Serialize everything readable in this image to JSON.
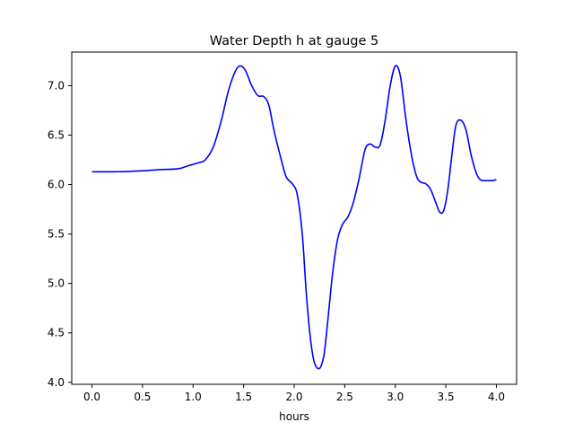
{
  "chart_data": {
    "type": "line",
    "title": "Water Depth h at gauge 5",
    "xlabel": "hours",
    "ylabel": "",
    "xlim": [
      -0.2,
      4.2
    ],
    "ylim": [
      3.98,
      7.34
    ],
    "xticks": [
      0.0,
      0.5,
      1.0,
      1.5,
      2.0,
      2.5,
      3.0,
      3.5,
      4.0
    ],
    "xtick_labels": [
      "0.0",
      "0.5",
      "1.0",
      "1.5",
      "2.0",
      "2.5",
      "3.0",
      "3.5",
      "4.0"
    ],
    "yticks": [
      4.0,
      4.5,
      5.0,
      5.5,
      6.0,
      6.5,
      7.0
    ],
    "ytick_labels": [
      "4.0",
      "4.5",
      "5.0",
      "5.5",
      "6.0",
      "6.5",
      "7.0"
    ],
    "grid": false,
    "series": [
      {
        "color": "#0000ff",
        "x": [
          0.0,
          0.25,
          0.5,
          0.65,
          0.85,
          0.95,
          1.05,
          1.12,
          1.2,
          1.28,
          1.35,
          1.42,
          1.47,
          1.52,
          1.58,
          1.64,
          1.7,
          1.75,
          1.8,
          1.86,
          1.92,
          1.98,
          2.03,
          2.08,
          2.12,
          2.16,
          2.2,
          2.25,
          2.29,
          2.31,
          2.34,
          2.38,
          2.43,
          2.48,
          2.53,
          2.58,
          2.64,
          2.7,
          2.75,
          2.8,
          2.85,
          2.9,
          2.95,
          3.0,
          3.05,
          3.1,
          3.14,
          3.18,
          3.22,
          3.26,
          3.3,
          3.35,
          3.4,
          3.44,
          3.48,
          3.52,
          3.56,
          3.6,
          3.65,
          3.7,
          3.75,
          3.8,
          3.84,
          3.88,
          3.92,
          3.96,
          4.0
        ],
        "y": [
          6.13,
          6.13,
          6.14,
          6.15,
          6.16,
          6.19,
          6.22,
          6.25,
          6.38,
          6.65,
          6.95,
          7.15,
          7.2,
          7.15,
          7.0,
          6.9,
          6.89,
          6.8,
          6.55,
          6.3,
          6.08,
          6.01,
          5.9,
          5.5,
          4.9,
          4.45,
          4.2,
          4.14,
          4.25,
          4.4,
          4.7,
          5.1,
          5.45,
          5.6,
          5.67,
          5.8,
          6.05,
          6.35,
          6.41,
          6.38,
          6.4,
          6.65,
          7.0,
          7.2,
          7.1,
          6.7,
          6.42,
          6.2,
          6.06,
          6.02,
          6.01,
          5.95,
          5.82,
          5.72,
          5.74,
          5.95,
          6.3,
          6.6,
          6.65,
          6.55,
          6.3,
          6.12,
          6.05,
          6.04,
          6.04,
          6.04,
          6.05
        ]
      }
    ]
  }
}
